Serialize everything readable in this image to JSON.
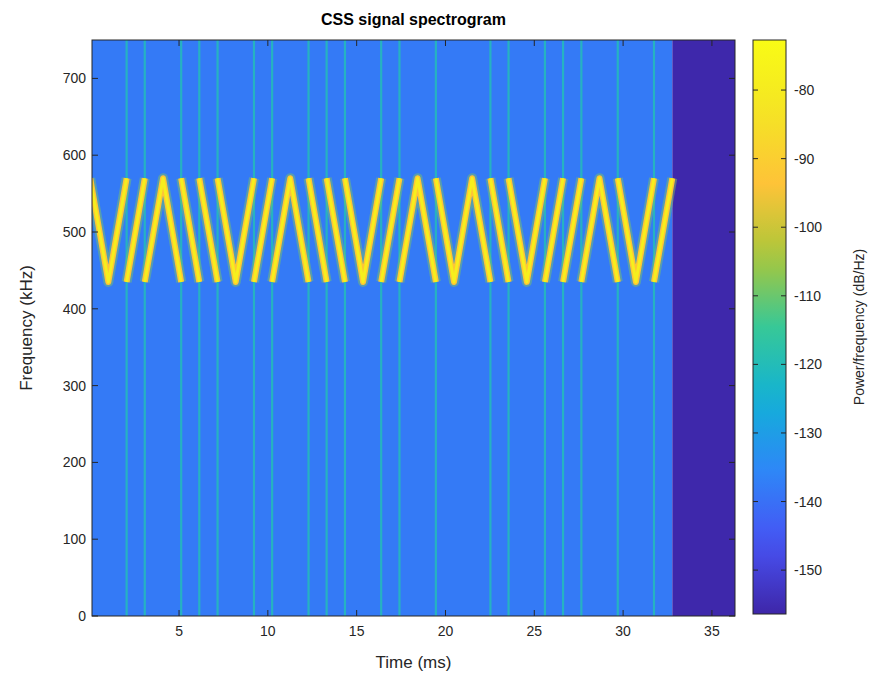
{
  "chart_data": {
    "type": "spectrogram",
    "title": "CSS signal spectrogram",
    "x_label": "Time (ms)",
    "y_label": "Frequency (kHz)",
    "color_label": "Power/frequency (dB/Hz)",
    "xlim": [
      0.1,
      36.3
    ],
    "ylim": [
      0,
      750
    ],
    "xticks": [
      5,
      10,
      15,
      20,
      25,
      30,
      35
    ],
    "yticks": [
      0,
      100,
      200,
      300,
      400,
      500,
      600,
      700
    ],
    "color_range": [
      -156.4,
      -72.7
    ],
    "color_ticks": [
      -150,
      -140,
      -130,
      -120,
      -110,
      -100,
      -90,
      -80
    ],
    "ridge_level": -78,
    "noise_level": -138,
    "streak_level": -120,
    "floor_level": -156,
    "x": [
      0,
      1.02,
      2.05,
      2.05,
      2.05,
      3.07,
      3.07,
      3.07,
      4.1,
      5.12,
      5.12,
      5.12,
      6.14,
      6.14,
      6.14,
      7.17,
      7.17,
      7.17,
      8.19,
      9.22,
      9.22,
      9.22,
      10.24,
      10.24,
      10.24,
      11.26,
      12.29,
      12.29,
      12.29,
      13.31,
      13.31,
      13.31,
      14.34,
      14.34,
      14.34,
      15.36,
      16.38,
      16.38,
      16.38,
      17.41,
      17.41,
      17.41,
      18.43,
      19.46,
      19.46,
      19.46,
      20.48,
      21.5,
      22.53,
      22.53,
      22.53,
      23.55,
      23.55,
      23.55,
      24.58,
      25.6,
      25.6,
      25.6,
      26.62,
      26.62,
      26.62,
      27.65,
      27.65,
      27.65,
      28.67,
      29.7,
      29.7,
      29.7,
      30.72,
      31.74,
      31.74,
      31.74,
      32.77
    ],
    "values": [
      570,
      435,
      570,
      null,
      435,
      570,
      null,
      435,
      570,
      435,
      null,
      570,
      435,
      null,
      570,
      435,
      null,
      570,
      435,
      570,
      null,
      435,
      570,
      null,
      435,
      570,
      435,
      null,
      570,
      435,
      null,
      570,
      435,
      null,
      570,
      435,
      570,
      null,
      435,
      570,
      null,
      435,
      570,
      435,
      null,
      570,
      435,
      570,
      435,
      null,
      570,
      435,
      null,
      570,
      435,
      570,
      null,
      435,
      570,
      null,
      435,
      570,
      null,
      435,
      570,
      435,
      null,
      570,
      435,
      570,
      null,
      435,
      570
    ]
  }
}
